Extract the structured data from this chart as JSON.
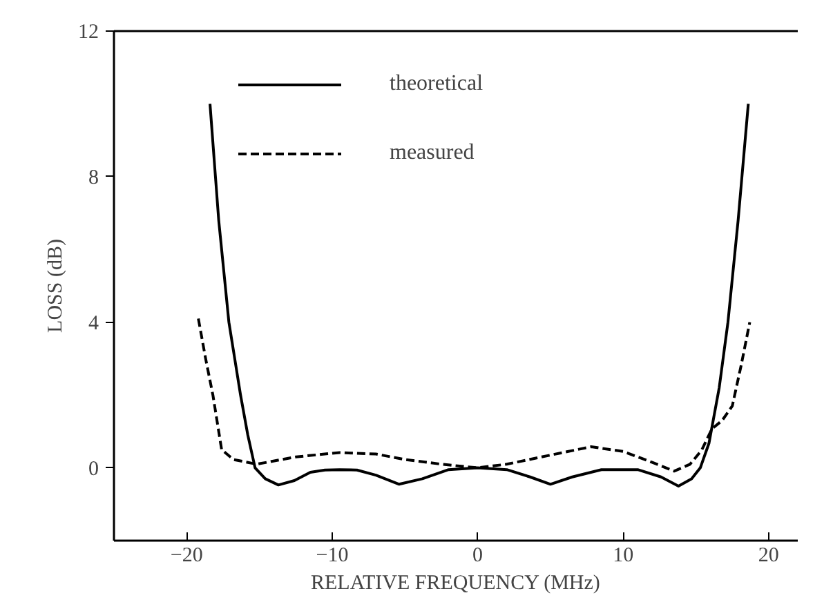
{
  "chart_data": {
    "type": "line",
    "xlabel": "RELATIVE FREQUENCY (MHz)",
    "ylabel": "LOSS (dB)",
    "xlim": [
      -25,
      22
    ],
    "ylim": [
      -2,
      12
    ],
    "xticks": [
      -20,
      -10,
      0,
      10,
      20
    ],
    "yticks": [
      0,
      4,
      8,
      12
    ],
    "grid": false,
    "legend": "top left",
    "series": [
      {
        "name": "theoretical",
        "color": "#000000",
        "line_style": "solid",
        "x": [
          -18.4,
          -17.8,
          -17.1,
          -16.3,
          -15.8,
          -15.3,
          -14.6,
          -13.7,
          -12.6,
          -11.5,
          -10.5,
          -9.5,
          -8.3,
          -7.0,
          -5.4,
          -3.8,
          -2.0,
          0,
          2.0,
          3.6,
          5.0,
          6.5,
          8.5,
          11.0,
          12.6,
          13.8,
          14.7,
          15.3,
          15.9,
          16.6,
          17.2,
          17.9,
          18.6
        ],
        "values": [
          10,
          6.8,
          4,
          2,
          0.9,
          0,
          -0.3,
          -0.47,
          -0.35,
          -0.12,
          -0.06,
          -0.05,
          -0.06,
          -0.2,
          -0.45,
          -0.3,
          -0.05,
          0,
          -0.05,
          -0.25,
          -0.45,
          -0.25,
          -0.05,
          -0.05,
          -0.25,
          -0.5,
          -0.3,
          0,
          0.68,
          2.2,
          4,
          6.8,
          10
        ]
      },
      {
        "name": "measured",
        "color": "#000000",
        "line_style": "dashed",
        "x": [
          -19.2,
          -18.7,
          -18.2,
          -17.6,
          -16.8,
          -15.2,
          -12.5,
          -9.5,
          -7.0,
          -5.0,
          -2.5,
          0,
          2.0,
          5.0,
          7.8,
          10.0,
          12.0,
          13.5,
          14.6,
          15.4,
          16.1,
          16.8,
          17.5,
          18.1,
          18.7
        ],
        "values": [
          4.1,
          3.0,
          2.0,
          0.5,
          0.23,
          0.1,
          0.3,
          0.42,
          0.38,
          0.23,
          0.1,
          0.0,
          0.1,
          0.35,
          0.58,
          0.45,
          0.15,
          -0.09,
          0.1,
          0.49,
          1.07,
          1.3,
          1.7,
          2.8,
          4.0
        ]
      }
    ]
  }
}
